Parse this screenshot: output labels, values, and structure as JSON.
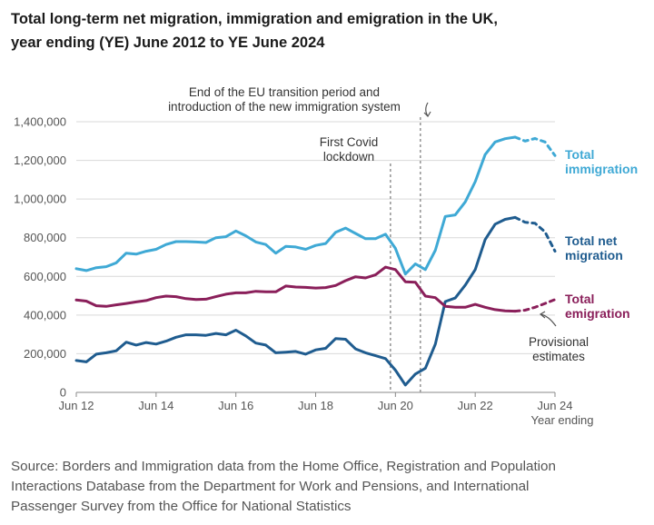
{
  "title": {
    "line1": "Total long-term net migration, immigration and emigration in the UK,",
    "line2": "year ending (YE) June 2012 to YE June 2024"
  },
  "source": {
    "line1": "Source: Borders and Immigration data from the Home Office, Registration and Population",
    "line2": "Interactions Database from the Department for Work and Pensions, and International",
    "line3": "Passenger Survey from the Office for National Statistics"
  },
  "colors": {
    "immigration": "#3fa9d5",
    "net": "#1f5c8f",
    "emigration": "#8a1f5a",
    "grid": "#d9d9d9",
    "annotation_line": "#999999"
  },
  "chart_data": {
    "type": "line",
    "title": "Total long-term net migration, immigration and emigration in the UK, year ending (YE) June 2012 to YE June 2024",
    "xlabel": "Year ending",
    "ylabel": "",
    "x_unit": "quarters since YE Jun 2012",
    "xlim": [
      0,
      48
    ],
    "ylim": [
      0,
      1400000
    ],
    "y_ticks": [
      0,
      200000,
      400000,
      600000,
      800000,
      1000000,
      1200000,
      1400000
    ],
    "y_tick_labels": [
      "0",
      "200,000",
      "400,000",
      "600,000",
      "800,000",
      "1,000,000",
      "1,200,000",
      "1,400,000"
    ],
    "x_ticks": [
      0,
      8,
      16,
      24,
      32,
      40,
      48
    ],
    "x_tick_labels": [
      "Jun 12",
      "Jun 14",
      "Jun 16",
      "Jun 18",
      "Jun 20",
      "Jun 22",
      "Jun 24"
    ],
    "grid": true,
    "provisional_from": 44,
    "series": [
      {
        "key": "immigration",
        "name": "Total immigration",
        "label_line1": "Total",
        "label_line2": "immigration",
        "x": [
          0,
          1,
          2,
          3,
          4,
          5,
          6,
          7,
          8,
          9,
          10,
          11,
          12,
          13,
          14,
          15,
          16,
          17,
          18,
          19,
          20,
          21,
          22,
          23,
          24,
          25,
          26,
          27,
          28,
          29,
          30,
          31,
          32,
          33,
          34,
          35,
          36,
          37,
          38,
          39,
          40,
          41,
          42,
          43,
          44,
          45,
          46,
          47,
          48
        ],
        "values": [
          640000,
          630000,
          645000,
          650000,
          670000,
          720000,
          715000,
          730000,
          740000,
          765000,
          780000,
          780000,
          778000,
          775000,
          800000,
          805000,
          835000,
          810000,
          778000,
          765000,
          720000,
          755000,
          752000,
          740000,
          760000,
          770000,
          828000,
          850000,
          822000,
          795000,
          795000,
          818000,
          745000,
          612000,
          665000,
          635000,
          735000,
          910000,
          918000,
          985000,
          1090000,
          1230000,
          1295000,
          1312000,
          1320000,
          1300000,
          1313000,
          1295000,
          1225000
        ]
      },
      {
        "key": "net",
        "name": "Total net migration",
        "label_line1": "Total net",
        "label_line2": "migration",
        "x": [
          0,
          1,
          2,
          3,
          4,
          5,
          6,
          7,
          8,
          9,
          10,
          11,
          12,
          13,
          14,
          15,
          16,
          17,
          18,
          19,
          20,
          21,
          22,
          23,
          24,
          25,
          26,
          27,
          28,
          29,
          30,
          31,
          32,
          33,
          34,
          35,
          36,
          37,
          38,
          39,
          40,
          41,
          42,
          43,
          44,
          45,
          46,
          47,
          48
        ],
        "values": [
          165000,
          158000,
          198000,
          205000,
          215000,
          260000,
          245000,
          258000,
          250000,
          265000,
          285000,
          298000,
          298000,
          295000,
          305000,
          298000,
          322000,
          292000,
          255000,
          245000,
          205000,
          208000,
          212000,
          198000,
          220000,
          228000,
          278000,
          275000,
          225000,
          205000,
          190000,
          175000,
          115000,
          38000,
          95000,
          125000,
          250000,
          470000,
          488000,
          555000,
          635000,
          790000,
          870000,
          895000,
          905000,
          880000,
          875000,
          830000,
          730000
        ]
      },
      {
        "key": "emigration",
        "name": "Total emigration",
        "label_line1": "Total",
        "label_line2": "emigration",
        "x": [
          0,
          1,
          2,
          3,
          4,
          5,
          6,
          7,
          8,
          9,
          10,
          11,
          12,
          13,
          14,
          15,
          16,
          17,
          18,
          19,
          20,
          21,
          22,
          23,
          24,
          25,
          26,
          27,
          28,
          29,
          30,
          31,
          32,
          33,
          34,
          35,
          36,
          37,
          38,
          39,
          40,
          41,
          42,
          43,
          44,
          45,
          46,
          47,
          48
        ],
        "values": [
          478000,
          472000,
          448000,
          445000,
          453000,
          460000,
          468000,
          475000,
          490000,
          498000,
          495000,
          485000,
          480000,
          482000,
          495000,
          508000,
          515000,
          515000,
          523000,
          520000,
          520000,
          550000,
          545000,
          543000,
          540000,
          542000,
          553000,
          578000,
          598000,
          592000,
          608000,
          648000,
          635000,
          572000,
          570000,
          498000,
          490000,
          445000,
          440000,
          440000,
          455000,
          440000,
          428000,
          422000,
          420000,
          425000,
          440000,
          460000,
          480000
        ]
      }
    ],
    "annotations": {
      "eu_line1": "End of the EU transition period and",
      "eu_line2": "introduction of the new immigration system",
      "eu_x": 34.5,
      "covid_line1": "First Covid",
      "covid_line2": "lockdown",
      "covid_x": 31.5,
      "prov_line1": "Provisional",
      "prov_line2": "estimates",
      "xaxis_title": "Year ending"
    }
  }
}
